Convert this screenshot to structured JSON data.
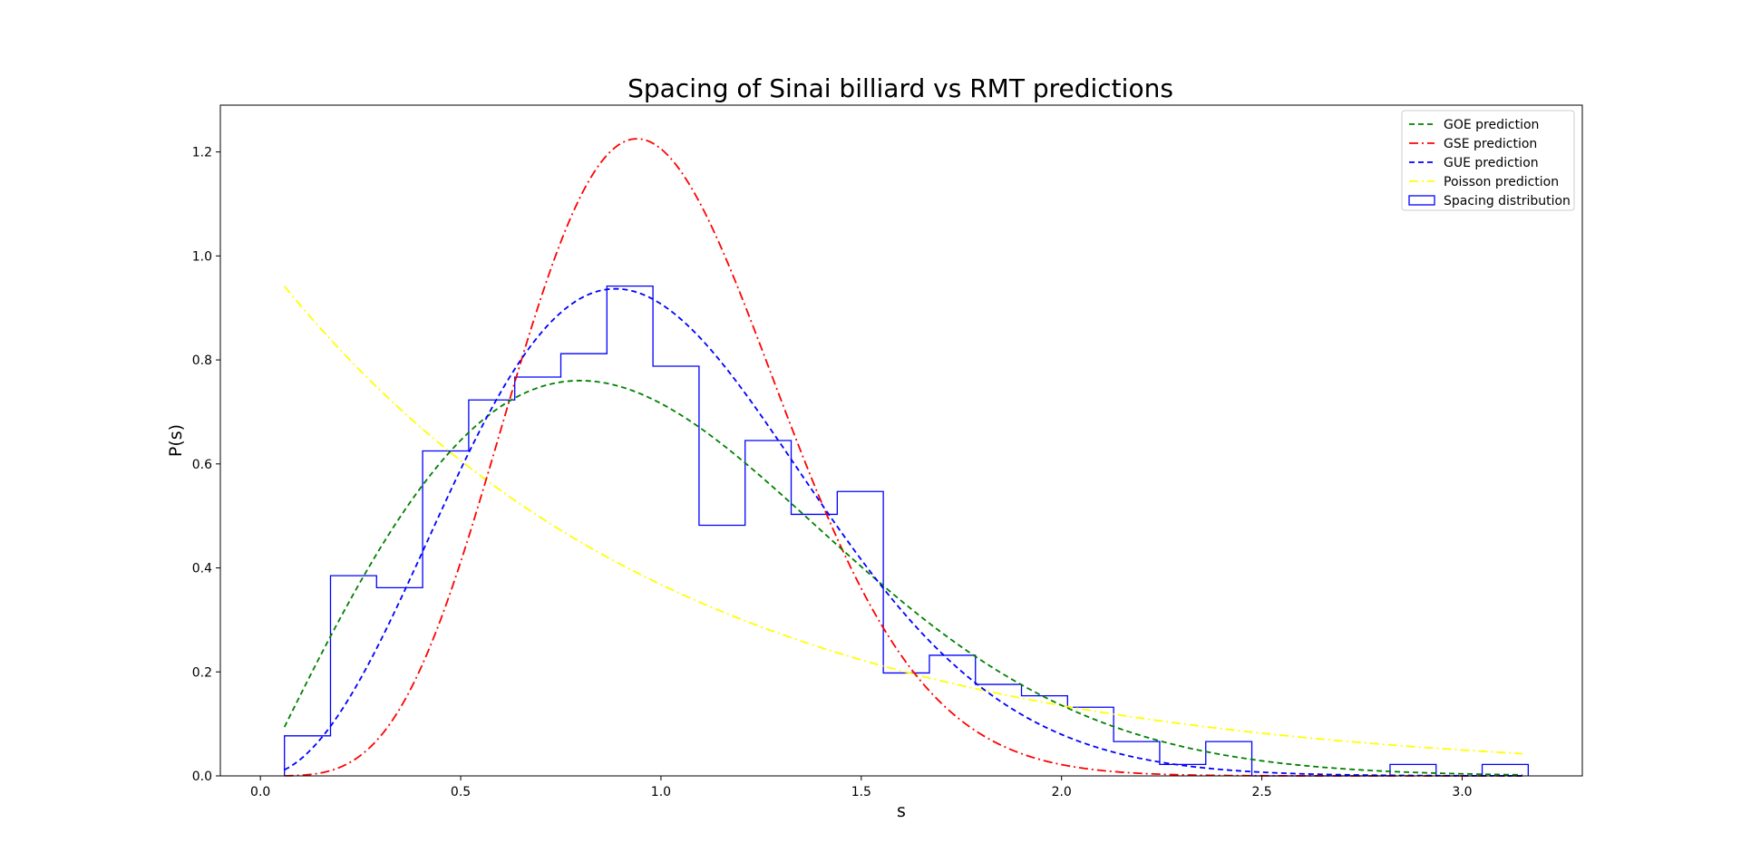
{
  "chart_data": {
    "type": "line",
    "title": "Spacing of Sinai billiard vs RMT predictions",
    "xlabel": "s",
    "ylabel": "P(s)",
    "xlim": [
      -0.1,
      3.3
    ],
    "ylim": [
      0.0,
      1.29
    ],
    "xticks": [
      0.0,
      0.5,
      1.0,
      1.5,
      2.0,
      2.5,
      3.0
    ],
    "xtick_labels": [
      "0.0",
      "0.5",
      "1.0",
      "1.5",
      "2.0",
      "2.5",
      "3.0"
    ],
    "yticks": [
      0.0,
      0.2,
      0.4,
      0.6,
      0.8,
      1.0,
      1.2
    ],
    "ytick_labels": [
      "0.0",
      "0.2",
      "0.4",
      "0.6",
      "0.8",
      "1.0",
      "1.2"
    ],
    "grid": false,
    "legend_position": "top-right",
    "curve_range": [
      0.06,
      3.15
    ],
    "series": [
      {
        "name": "GOE prediction",
        "kind": "goe",
        "color": "#008000",
        "dash": "dashed"
      },
      {
        "name": "GSE prediction",
        "kind": "gse",
        "color": "#ff0000",
        "dash": "dashdot"
      },
      {
        "name": "GUE prediction",
        "kind": "gue",
        "color": "#0000ff",
        "dash": "dashed"
      },
      {
        "name": "Poisson prediction",
        "kind": "poisson",
        "color": "#ffff00",
        "dash": "dashdot"
      }
    ],
    "histogram": {
      "name": "Spacing distribution",
      "color": "#0000ff",
      "bin_edges": [
        0.06,
        0.175,
        0.29,
        0.405,
        0.52,
        0.635,
        0.75,
        0.865,
        0.98,
        1.095,
        1.21,
        1.325,
        1.44,
        1.555,
        1.67,
        1.785,
        1.9,
        2.015,
        2.13,
        2.245,
        2.36,
        2.475,
        2.59,
        2.705,
        2.82,
        2.935,
        3.05,
        3.165
      ],
      "values": [
        0.077,
        0.385,
        0.362,
        0.625,
        0.723,
        0.767,
        0.812,
        0.942,
        0.788,
        0.482,
        0.645,
        0.503,
        0.547,
        0.198,
        0.232,
        0.176,
        0.154,
        0.132,
        0.066,
        0.022,
        0.066,
        0.0,
        0.0,
        0.0,
        0.022,
        0.0,
        0.022
      ]
    }
  }
}
